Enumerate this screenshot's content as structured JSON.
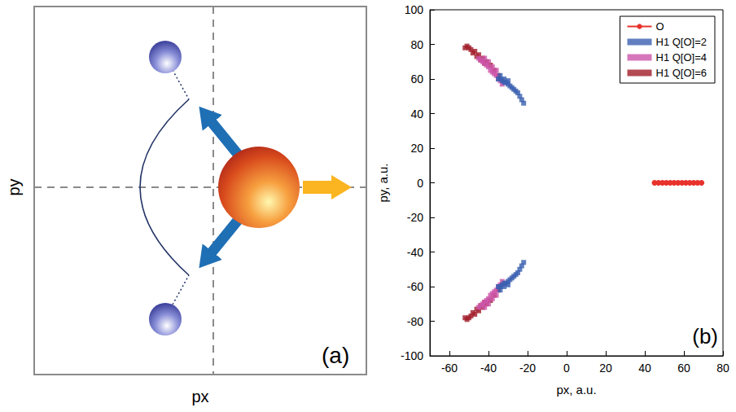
{
  "diagram": {
    "x_label": "px",
    "y_label": "py",
    "panel_label": "(a)"
  },
  "chart_data": {
    "type": "scatter",
    "panel_label": "(b)",
    "x_label": "px, a.u.",
    "y_label": "py, a.u.",
    "xlim": [
      -70,
      80
    ],
    "xticks": [
      -60,
      -40,
      -20,
      0,
      20,
      40,
      60,
      80
    ],
    "ylim": [
      -100,
      100
    ],
    "yticks": [
      -100,
      -80,
      -60,
      -40,
      -20,
      0,
      20,
      40,
      60,
      80,
      100
    ],
    "grid": false,
    "legend": "upper right",
    "series": [
      {
        "name": "O",
        "type": "line",
        "marker": "circle",
        "color": "#e8322c",
        "x": [
          45,
          47,
          49,
          51,
          53,
          55,
          57,
          59,
          61,
          63,
          65,
          67,
          69
        ],
        "values": [
          0,
          0,
          0,
          0,
          0,
          0,
          0,
          0,
          0,
          0,
          0,
          0,
          0
        ]
      },
      {
        "name": "H1 Q[O]=2",
        "type": "scatter",
        "marker": "square",
        "color": "#3a5fb0",
        "x": [
          -22,
          -23,
          -24,
          -25,
          -26,
          -27,
          -28,
          -29,
          -30,
          -31,
          -32,
          -33,
          -34,
          -35,
          -30,
          -32,
          -34,
          -22,
          -23,
          -24,
          -25,
          -26,
          -27,
          -28,
          -29,
          -30,
          -31,
          -32,
          -33,
          -34,
          -35,
          -30,
          -32,
          -34
        ],
        "values": [
          46,
          48,
          50,
          52,
          53,
          54,
          55,
          56,
          57,
          58,
          58,
          59,
          60,
          60,
          59,
          60,
          62,
          -46,
          -48,
          -50,
          -52,
          -53,
          -54,
          -55,
          -56,
          -57,
          -58,
          -58,
          -59,
          -60,
          -60,
          -59,
          -60,
          -62
        ]
      },
      {
        "name": "H1 Q[O]=4",
        "type": "scatter",
        "marker": "square",
        "color": "#cc55aa",
        "x": [
          -33,
          -34,
          -35,
          -36,
          -37,
          -38,
          -39,
          -40,
          -41,
          -42,
          -43,
          -44,
          -45,
          -36,
          -38,
          -40,
          -42,
          -33,
          -34,
          -35,
          -36,
          -37,
          -38,
          -39,
          -40,
          -41,
          -42,
          -43,
          -44,
          -45,
          -36,
          -38,
          -40,
          -42
        ],
        "values": [
          57,
          59,
          60,
          62,
          63,
          64,
          65,
          67,
          68,
          69,
          70,
          71,
          72,
          65,
          67,
          70,
          72,
          -57,
          -59,
          -60,
          -62,
          -63,
          -64,
          -65,
          -67,
          -68,
          -69,
          -70,
          -71,
          -72,
          -65,
          -67,
          -70,
          -72
        ]
      },
      {
        "name": "H1 Q[O]=6",
        "type": "scatter",
        "marker": "square",
        "color": "#a01c28",
        "x": [
          -35,
          -37,
          -39,
          -41,
          -43,
          -45,
          -47,
          -49,
          -50,
          -51,
          -52,
          -48,
          -46,
          -44,
          -42,
          -35,
          -37,
          -39,
          -41,
          -43,
          -45,
          -47,
          -49,
          -50,
          -51,
          -52,
          -48,
          -46,
          -44,
          -42
        ],
        "values": [
          62,
          65,
          68,
          70,
          72,
          74,
          76,
          77,
          78,
          79,
          78,
          75,
          73,
          71,
          69,
          -62,
          -65,
          -68,
          -70,
          -72,
          -74,
          -76,
          -77,
          -78,
          -79,
          -78,
          -75,
          -73,
          -71,
          -69
        ]
      }
    ]
  }
}
